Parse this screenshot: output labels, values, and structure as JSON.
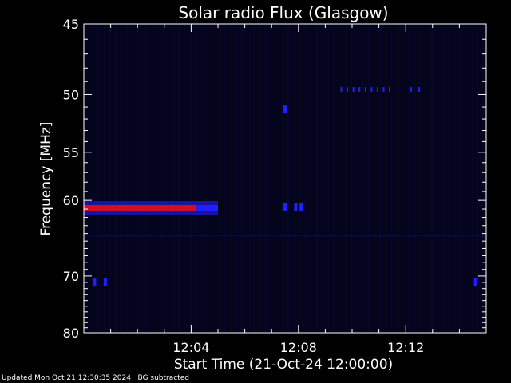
{
  "footer": {
    "updated": "Updated Mon Oct 21 12:30:35 2024",
    "bg_note": "BG subtracted"
  },
  "chart_data": {
    "type": "heatmap",
    "title": "Solar radio Flux (Glasgow)",
    "xlabel": "Start Time (21-Oct-24 12:00:00)",
    "ylabel": "Frequency [MHz]",
    "x_unit": "minutes after 12:00:00",
    "xlim": [
      0,
      15
    ],
    "ylim": [
      45,
      80
    ],
    "y_scale": "reciprocal",
    "x_ticks": [
      {
        "value": 4,
        "label": "12:04"
      },
      {
        "value": 8,
        "label": "12:08"
      },
      {
        "value": 12,
        "label": "12:12"
      }
    ],
    "y_ticks": [
      {
        "value": 45,
        "label": "45"
      },
      {
        "value": 50,
        "label": "50"
      },
      {
        "value": 55,
        "label": "55"
      },
      {
        "value": 60,
        "label": "60"
      },
      {
        "value": 70,
        "label": "70"
      },
      {
        "value": 80,
        "label": "80"
      }
    ],
    "colors": {
      "background": "#000000",
      "low": "#0a0a3a",
      "mid": "#2020ff",
      "high": "#d01020",
      "axes": "#ffffff"
    },
    "features": [
      {
        "type": "band",
        "x_start": 0.0,
        "x_end": 4.2,
        "freq": 60.9,
        "intensity": "high"
      },
      {
        "type": "band",
        "x_start": 4.2,
        "x_end": 5.0,
        "freq": 60.9,
        "intensity": "mid"
      },
      {
        "type": "spot",
        "x": 7.5,
        "freq": 60.8,
        "intensity": "mid"
      },
      {
        "type": "spot",
        "x": 7.9,
        "freq": 60.8,
        "intensity": "mid"
      },
      {
        "type": "spot",
        "x": 8.1,
        "freq": 60.8,
        "intensity": "mid"
      },
      {
        "type": "spot",
        "x": 7.5,
        "freq": 51.2,
        "intensity": "mid"
      },
      {
        "type": "spot",
        "x": 0.4,
        "freq": 71.0,
        "intensity": "mid"
      },
      {
        "type": "spot",
        "x": 0.8,
        "freq": 71.0,
        "intensity": "mid"
      },
      {
        "type": "spot",
        "x": 14.6,
        "freq": 71.0,
        "intensity": "mid"
      },
      {
        "type": "dots",
        "x_start": 9.6,
        "x_end": 11.4,
        "freq": 49.6,
        "count": 9,
        "intensity": "mid"
      },
      {
        "type": "dots",
        "x_start": 12.2,
        "x_end": 12.5,
        "freq": 49.6,
        "count": 2,
        "intensity": "mid"
      }
    ]
  }
}
